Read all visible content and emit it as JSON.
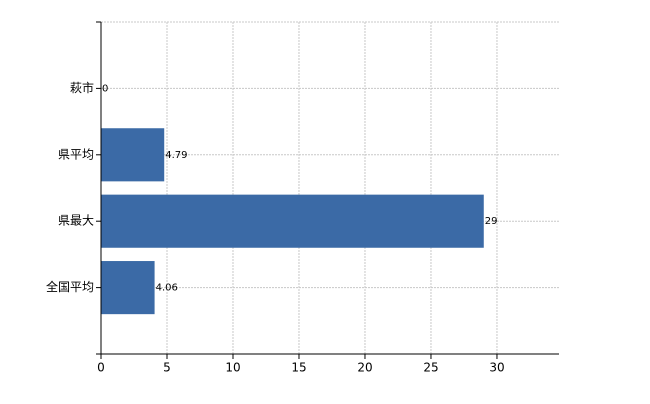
{
  "chart_data": {
    "type": "barh",
    "categories": [
      "萩市",
      "県平均",
      "県最大",
      "全国平均"
    ],
    "values": [
      0,
      4.79,
      29,
      4.06
    ],
    "color": "#3b6aa6",
    "xlim": [
      0,
      34.7
    ],
    "xticks": [
      0,
      5,
      10,
      15,
      20,
      25,
      30
    ],
    "grid": true
  }
}
